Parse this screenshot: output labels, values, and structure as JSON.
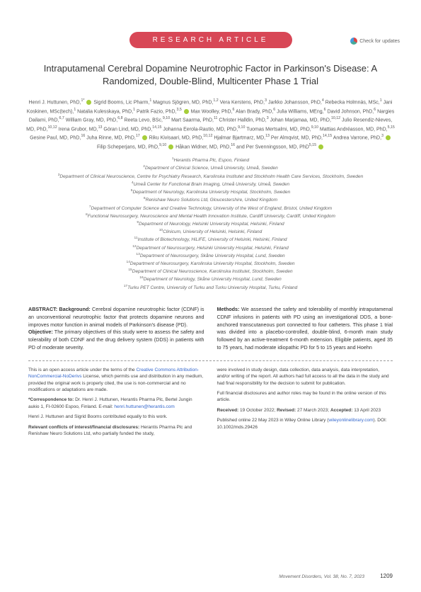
{
  "checkUpdates": "Check for updates",
  "banner": "RESEARCH ARTICLE",
  "title": "Intraputamenal Cerebral Dopamine Neurotrophic Factor in Parkinson's Disease: A Randomized, Double-Blind, Multicenter Phase 1 Trial",
  "abstract": {
    "left": {
      "bg_label": "ABSTRACT: Background:",
      "bg_text": " Cerebral dopamine neurotrophic factor (CDNF) is an unconventional neurotrophic factor that protects dopamine neurons and improves motor function in animal models of Parkinson's disease (PD).",
      "obj_label": "Objective:",
      "obj_text": " The primary objectives of this study were to assess the safety and tolerability of both CDNF and the drug delivery system (DDS) in patients with PD of moderate severity."
    },
    "right": {
      "meth_label": "Methods:",
      "meth_text": " We assessed the safety and tolerability of monthly intraputamenal CDNF infusions in patients with PD using an investigational DDS, a bone-anchored transcutaneous port connected to four catheters. This phase 1 trial was divided into a placebo-controlled, double-blind, 6-month main study followed by an active-treatment 6-month extension. Eligible patients, aged 35 to 75 years, had moderate idiopathic PD for 5 to 15 years and Hoehn"
    }
  },
  "footer": {
    "left": {
      "openAccess1": "This is an open access article under the terms of the ",
      "ccLink": "Creative Commons Attribution-NonCommercial-NoDerivs",
      "openAccess2": " License, which permits use and distribution in any medium, provided the original work is properly cited, the use is non-commercial and no modifications or adaptations are made.",
      "corrLabel": "*Correspondence to:",
      "corrText": " Dr. Henri J. Huttunen, Herantis Pharma Plc, Bertel Jungin aukio 1, FI-02600 Espoo, Finland. E-mail: ",
      "corrEmail": "henri.huttunen@herantis.com",
      "contrib": "Henri J. Huttunen and Sigrid Booms contributed equally to this work.",
      "coiLabel": "Relevant conflicts of interest/financial disclosures:",
      "coiText": " Herantis Pharma Plc and Renishaw Neuro Solutions Ltd, who partially funded the study,"
    },
    "right": {
      "involve": "were involved in study design, data collection, data analysis, data interpretation, and/or writing of the report. All authors had full access to all the data in the study and had final responsibility for the decision to submit for publication.",
      "disc": "Full financial disclosures and author roles may be found in the online version of this article.",
      "recLabel": "Received:",
      "recDate": " 19 October 2022; ",
      "revLabel": "Revised:",
      "revDate": " 27 March 2023; ",
      "accLabel": "Accepted:",
      "accDate": " 13 April 2023",
      "pub": "Published online 22 May 2023 in Wiley Online Library (",
      "pubLink": "wileyonlinelibrary.com",
      "pubDoi": "). DOI: 10.1002/mds.29426"
    }
  },
  "journalRef": "Movement Disorders, Vol. 38, No. 7, 2023",
  "pageNum": "1209"
}
